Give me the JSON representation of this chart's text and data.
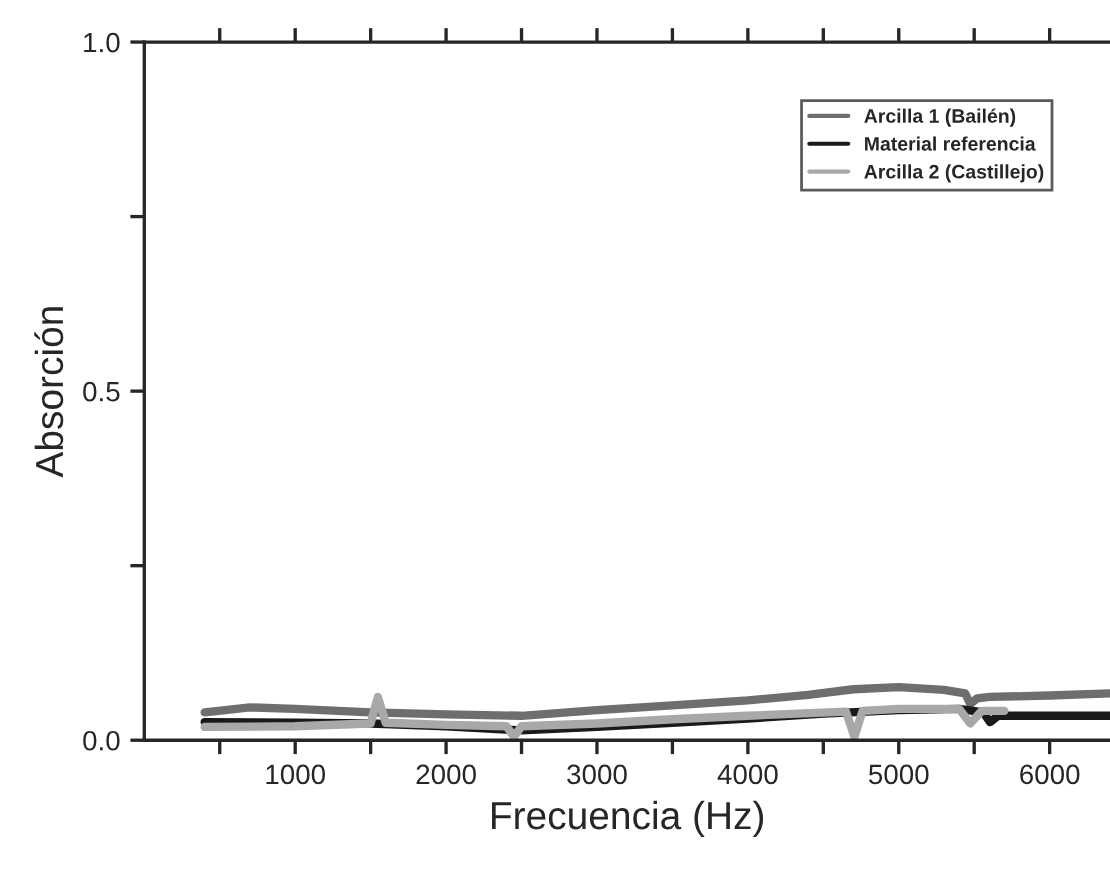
{
  "chart_data": {
    "type": "line",
    "xlabel": "Frecuencia (Hz)",
    "ylabel": "Absorción",
    "xlim": [
      0,
      6400
    ],
    "ylim": [
      0,
      1.0
    ],
    "xticks": [
      {
        "value": 500,
        "label": null
      },
      1000,
      {
        "value": 1500,
        "label": null
      },
      2000,
      {
        "value": 2500,
        "label": null
      },
      3000,
      {
        "value": 3500,
        "label": null
      },
      4000,
      {
        "value": 4500,
        "label": null
      },
      5000,
      {
        "value": 5500,
        "label": null
      },
      6000
    ],
    "yticks": [
      {
        "value": 0,
        "label": "0.0"
      },
      {
        "value": 0.25,
        "label": null
      },
      0.5,
      {
        "value": 0.75,
        "label": null
      },
      {
        "value": 1,
        "label": "1.0"
      }
    ],
    "legend": "top right",
    "grid": false,
    "line_style": "solid",
    "marker": "none",
    "series": [
      {
        "name": "Arcilla 1 (Bailén)",
        "color": "#6e6e6e",
        "x": [
          400,
          700,
          1000,
          1500,
          2000,
          2500,
          3000,
          3500,
          4000,
          4400,
          4700,
          5000,
          5300,
          5440,
          5474,
          5520,
          5600,
          6000,
          6400
        ],
        "values": [
          0.04,
          0.047,
          0.045,
          0.04,
          0.037,
          0.035,
          0.043,
          0.05,
          0.057,
          0.065,
          0.073,
          0.076,
          0.072,
          0.067,
          0.052,
          0.06,
          0.062,
          0.064,
          0.067
        ]
      },
      {
        "name": "Material referencia",
        "color": "#1a1a1a",
        "x": [
          400,
          1000,
          1500,
          2000,
          2500,
          3000,
          3500,
          4000,
          4500,
          5000,
          5400,
          5560,
          5605,
          5660,
          6000,
          6400
        ],
        "values": [
          0.026,
          0.025,
          0.024,
          0.02,
          0.014,
          0.019,
          0.025,
          0.031,
          0.038,
          0.043,
          0.045,
          0.04,
          0.026,
          0.035,
          0.035,
          0.035
        ]
      },
      {
        "name": "Arcilla 2 (Castillejo)",
        "color": "#a8a8a8",
        "x": [
          400,
          1000,
          1500,
          1548,
          1600,
          2000,
          2400,
          2450,
          2500,
          3000,
          3500,
          4000,
          4650,
          4706,
          4760,
          5000,
          5400,
          5474,
          5550,
          5700
        ],
        "values": [
          0.019,
          0.02,
          0.024,
          0.062,
          0.025,
          0.022,
          0.02,
          0.005,
          0.02,
          0.024,
          0.03,
          0.035,
          0.041,
          0.005,
          0.042,
          0.045,
          0.045,
          0.024,
          0.042,
          0.042
        ]
      }
    ]
  }
}
